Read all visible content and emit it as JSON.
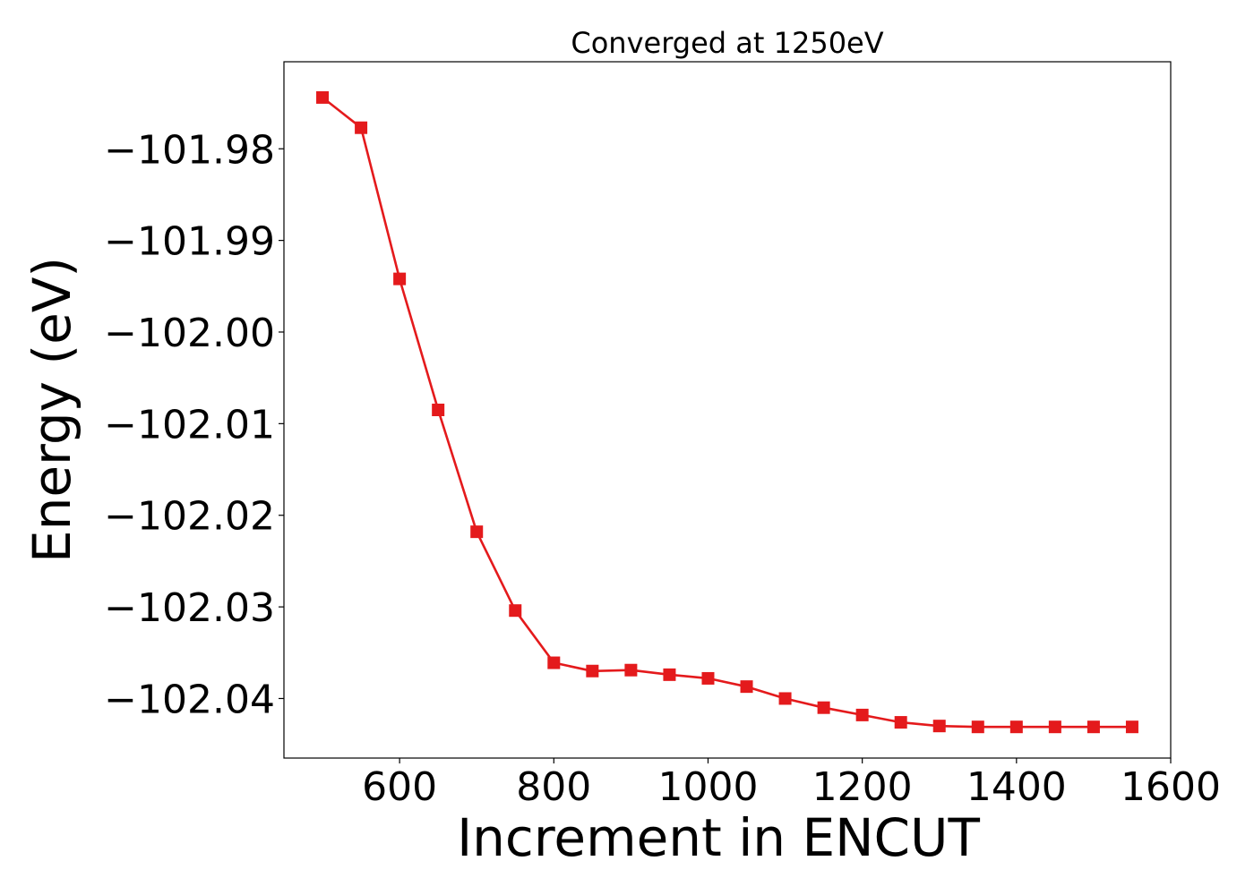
{
  "chart_data": {
    "type": "line",
    "title": "Converged at 1250eV",
    "xlabel": "Increment in ENCUT",
    "ylabel": "Energy (eV)",
    "xlim": [
      450,
      1600
    ],
    "ylim": [
      -102.0465,
      -101.9705
    ],
    "x_ticks": [
      600,
      800,
      1000,
      1200,
      1400,
      1600
    ],
    "x_tick_labels": [
      "600",
      "800",
      "1000",
      "1200",
      "1400",
      "1600"
    ],
    "y_ticks": [
      -101.98,
      -101.99,
      -102.0,
      -102.01,
      -102.02,
      -102.03,
      -102.04
    ],
    "y_tick_labels": [
      "−101.98",
      "−101.99",
      "−102.00",
      "−102.01",
      "−102.02",
      "−102.03",
      "−102.04"
    ],
    "grid": false,
    "legend": "none",
    "series": [
      {
        "color": "#e41a1c",
        "marker": "square",
        "x": [
          500,
          550,
          600,
          650,
          700,
          750,
          800,
          850,
          900,
          950,
          1000,
          1050,
          1100,
          1150,
          1200,
          1250,
          1300,
          1350,
          1400,
          1450,
          1500,
          1550
        ],
        "y": [
          -101.9744,
          -101.9777,
          -101.9942,
          -102.0085,
          -102.0218,
          -102.0304,
          -102.0361,
          -102.037,
          -102.0369,
          -102.0374,
          -102.0378,
          -102.0387,
          -102.04,
          -102.041,
          -102.0418,
          -102.0426,
          -102.043,
          -102.0431,
          -102.0431,
          -102.0431,
          -102.0431,
          -102.0431
        ]
      }
    ]
  }
}
